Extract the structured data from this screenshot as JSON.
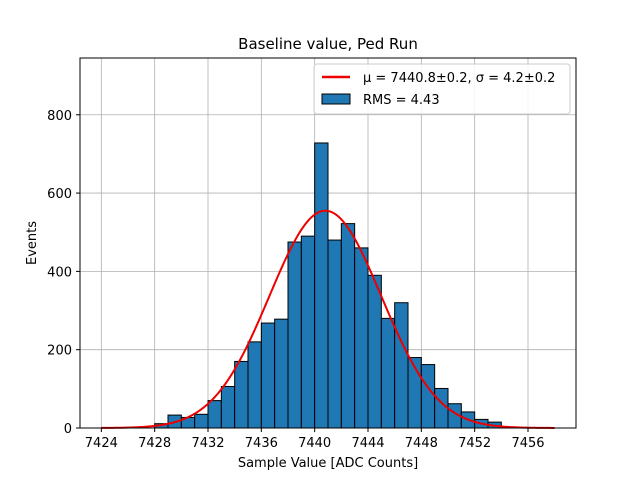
{
  "chart_data": {
    "type": "bar",
    "title": "Baseline value, Ped Run",
    "xlabel": "Sample Value [ADC Counts]",
    "ylabel": "Events",
    "xlim": [
      7422.4,
      7459.6
    ],
    "ylim": [
      0,
      945
    ],
    "xticks": [
      7424,
      7428,
      7432,
      7436,
      7440,
      7444,
      7448,
      7452,
      7456
    ],
    "yticks": [
      0,
      200,
      400,
      600,
      800
    ],
    "grid": true,
    "legend_position": "top-right",
    "histogram": {
      "name": "RMS = 4.43",
      "color": "#1f77b4",
      "edges": [
        7428,
        7429,
        7430,
        7431,
        7432,
        7433,
        7434,
        7435,
        7436,
        7437,
        7438,
        7439,
        7440,
        7441,
        7442,
        7443,
        7444,
        7445,
        7446,
        7447,
        7448,
        7449,
        7450,
        7451,
        7452,
        7453,
        7454
      ],
      "counts": [
        11,
        33,
        27,
        35,
        70,
        106,
        170,
        220,
        268,
        278,
        475,
        490,
        728,
        480,
        522,
        460,
        390,
        280,
        320,
        180,
        162,
        101,
        62,
        41,
        22,
        15
      ]
    },
    "fit": {
      "name": "μ = 7440.8±0.2, σ = 4.2±0.2",
      "color": "#ee0000",
      "mu": 7440.8,
      "sigma": 4.2,
      "amplitude": 555,
      "range": [
        7424,
        7458
      ]
    }
  }
}
